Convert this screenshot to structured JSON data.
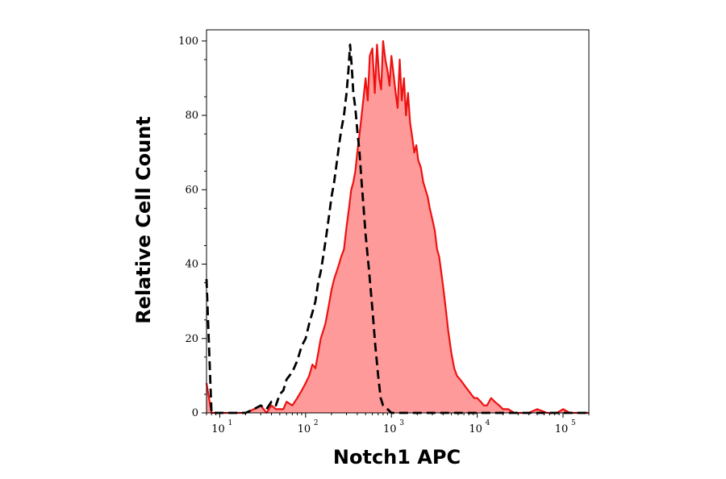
{
  "chart_data": {
    "type": "area",
    "xlabel": "Notch1 APC",
    "ylabel": "Relative Cell Count",
    "x_scale": "log",
    "xlim": [
      7,
      200000
    ],
    "ylim": [
      0,
      103
    ],
    "x_ticks": [
      {
        "value": 10,
        "base": "10",
        "exp": "1"
      },
      {
        "value": 100,
        "base": "10",
        "exp": "2"
      },
      {
        "value": 1000,
        "base": "10",
        "exp": "3"
      },
      {
        "value": 10000,
        "base": "10",
        "exp": "4"
      },
      {
        "value": 100000,
        "base": "10",
        "exp": "5"
      }
    ],
    "y_ticks": [
      "0",
      "20",
      "40",
      "60",
      "80",
      "100"
    ],
    "grid": false,
    "colors": {
      "stained": "#ee1111",
      "stained_fill": "#ff9a9a",
      "control": "#000000"
    },
    "series": [
      {
        "style": "red-filled",
        "x": [
          7,
          8,
          10,
          12,
          15,
          20,
          25,
          30,
          35,
          40,
          45,
          50,
          55,
          60,
          70,
          80,
          90,
          100,
          110,
          120,
          130,
          140,
          150,
          160,
          170,
          180,
          190,
          200,
          215,
          230,
          245,
          260,
          280,
          300,
          320,
          340,
          360,
          380,
          400,
          425,
          450,
          475,
          500,
          530,
          560,
          600,
          640,
          680,
          720,
          760,
          800,
          850,
          900,
          950,
          1000,
          1060,
          1120,
          1180,
          1250,
          1320,
          1400,
          1480,
          1560,
          1650,
          1750,
          1850,
          1950,
          2050,
          2200,
          2350,
          2500,
          2650,
          2800,
          3000,
          3200,
          3400,
          3600,
          3800,
          4000,
          4300,
          4600,
          5000,
          5400,
          5800,
          6300,
          6800,
          7300,
          7900,
          8500,
          9200,
          10000,
          11000,
          12000,
          13000,
          14500,
          16000,
          18000,
          20000,
          23000,
          27000,
          32000,
          40000,
          50000,
          65000,
          85000,
          100000,
          120000,
          160000,
          200000
        ],
        "values": [
          8,
          0,
          0,
          0,
          0,
          0,
          1,
          2,
          0,
          2,
          1,
          1,
          1,
          3,
          2,
          4,
          6,
          8,
          10,
          13,
          12,
          16,
          20,
          22,
          24,
          27,
          30,
          33,
          36,
          38,
          40,
          42,
          44,
          50,
          55,
          60,
          62,
          65,
          70,
          75,
          80,
          85,
          90,
          84,
          96,
          98,
          86,
          99,
          90,
          87,
          100,
          95,
          92,
          88,
          96,
          91,
          86,
          82,
          95,
          84,
          90,
          80,
          86,
          78,
          74,
          70,
          72,
          68,
          66,
          62,
          60,
          58,
          55,
          52,
          49,
          44,
          42,
          38,
          34,
          28,
          22,
          16,
          12,
          10,
          9,
          8,
          7,
          6,
          5,
          4,
          4,
          3,
          2,
          2,
          4,
          3,
          2,
          1,
          1,
          0,
          0,
          0,
          1,
          0,
          0,
          1,
          0,
          0,
          0
        ]
      },
      {
        "style": "black-dashed",
        "x": [
          7,
          8,
          10,
          12,
          15,
          20,
          25,
          30,
          35,
          40,
          45,
          50,
          55,
          60,
          70,
          80,
          90,
          100,
          110,
          120,
          130,
          140,
          150,
          160,
          170,
          180,
          190,
          200,
          215,
          230,
          245,
          260,
          280,
          300,
          315,
          330,
          345,
          360,
          380,
          400,
          425,
          450,
          475,
          500,
          550,
          600,
          650,
          700,
          750,
          800,
          900,
          1000,
          1500,
          2000,
          5000,
          20000,
          200000
        ],
        "values": [
          36,
          0,
          0,
          0,
          0,
          0,
          1,
          2,
          1,
          3,
          2,
          5,
          6,
          9,
          11,
          14,
          18,
          20,
          24,
          27,
          30,
          35,
          38,
          42,
          46,
          50,
          54,
          58,
          62,
          67,
          72,
          76,
          80,
          86,
          92,
          99,
          93,
          86,
          82,
          76,
          70,
          62,
          55,
          48,
          38,
          28,
          18,
          10,
          4,
          2,
          1,
          0,
          0,
          0,
          0,
          0,
          0
        ]
      }
    ]
  }
}
